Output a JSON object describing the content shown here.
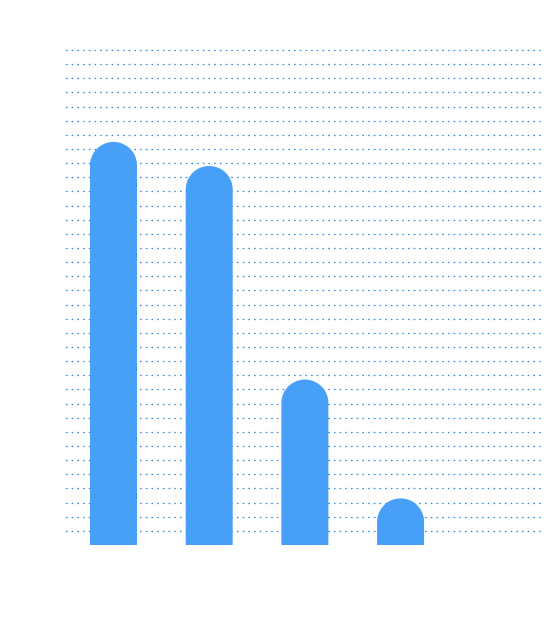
{
  "chart_data": {
    "type": "bar",
    "title": "",
    "xlabel": "",
    "ylabel": "",
    "categories": [
      "",
      "",
      "",
      ""
    ],
    "values": [
      28.5,
      26.8,
      11.7,
      3.3
    ],
    "ylim": [
      0,
      35
    ],
    "grid": true,
    "grid_style": "dotted",
    "bar_style": "rounded-top",
    "colors": {
      "bar": "#479ff8",
      "grid": "#2e86de",
      "background": "#ffffff"
    }
  }
}
